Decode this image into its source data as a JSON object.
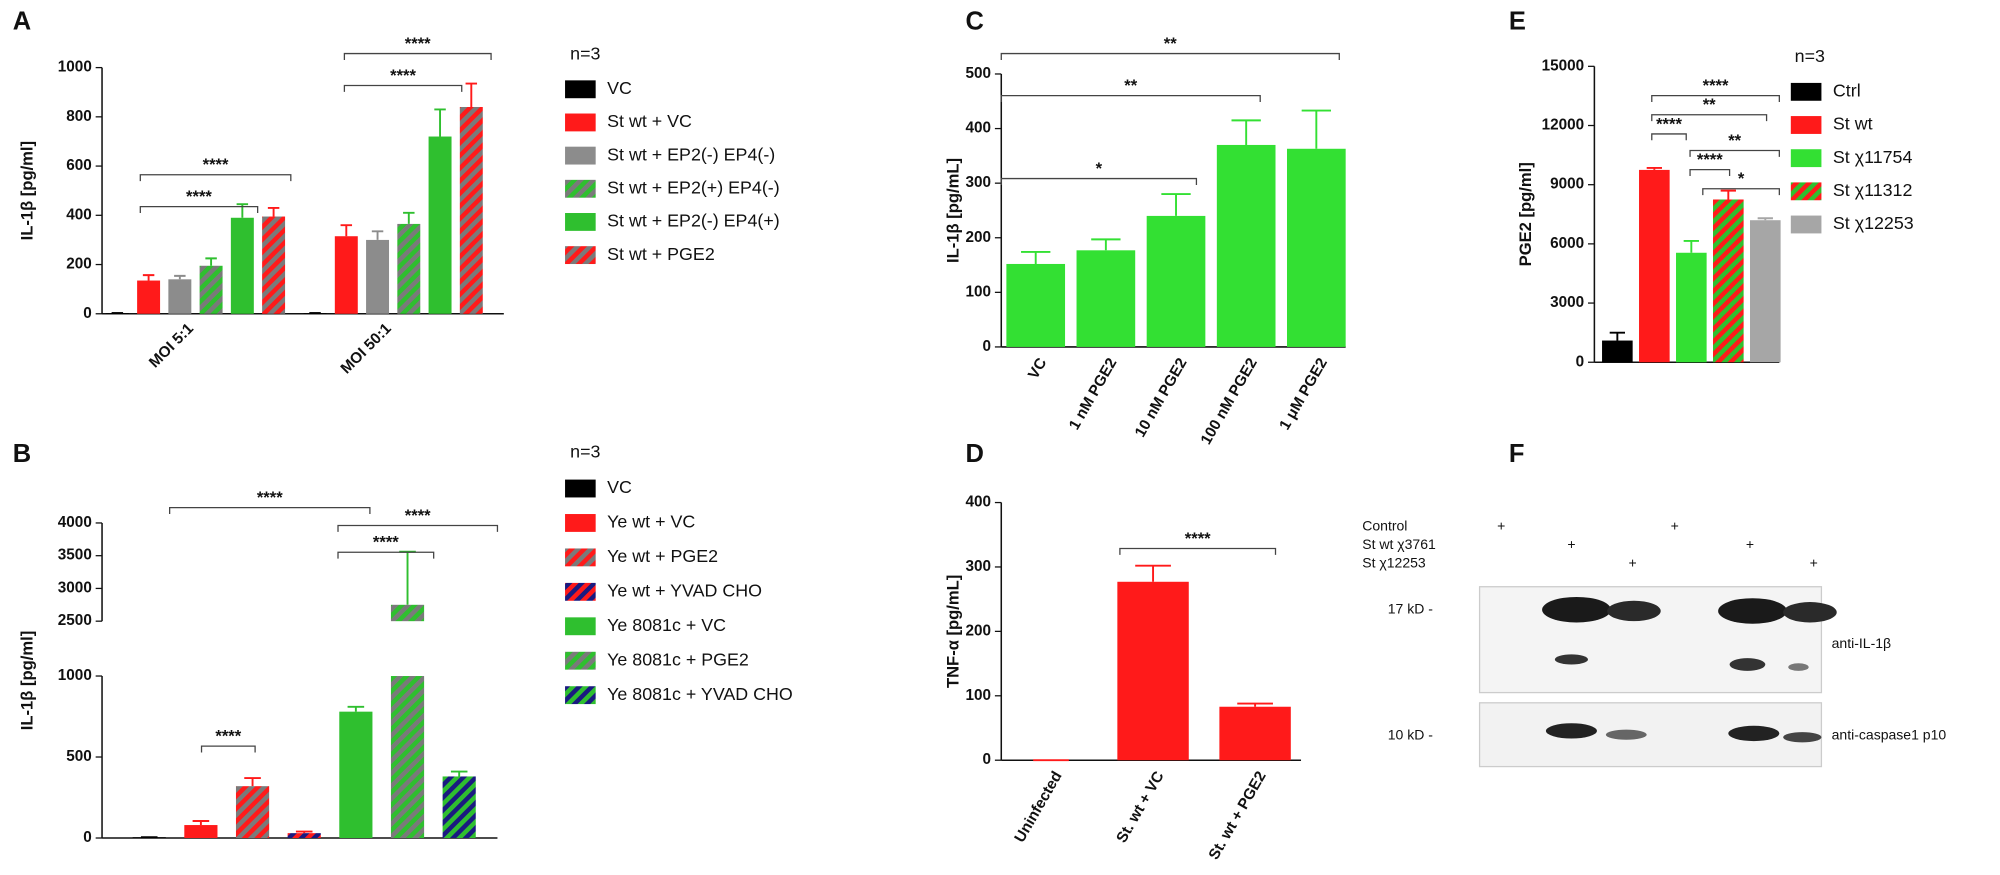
{
  "chart_data": [
    {
      "panel": "A",
      "type": "bar",
      "ylabel": "IL-1β [pg/ml]",
      "legend_title": "n=3",
      "categories": [
        "MOI 5:1",
        "MOI 50:1"
      ],
      "series": [
        {
          "name": "VC",
          "color": "#000000",
          "values": [
            3,
            3
          ],
          "errors": [
            0,
            0
          ]
        },
        {
          "name": "St wt + VC",
          "color": "#ff1a1a",
          "values": [
            135,
            315
          ],
          "errors": [
            22,
            45
          ]
        },
        {
          "name": "St wt + EP2(-) EP4(-)",
          "color": "#8c8c8c",
          "values": [
            140,
            300
          ],
          "errors": [
            14,
            35
          ]
        },
        {
          "name": "St wt + EP2(+) EP4(-)",
          "color": "#2fbf2f",
          "stripe_color": "#7a7a7a",
          "values": [
            195,
            365
          ],
          "errors": [
            30,
            45
          ]
        },
        {
          "name": "St wt + EP2(-) EP4(+)",
          "color": "#2fbf2f",
          "values": [
            390,
            720
          ],
          "errors": [
            55,
            110
          ]
        },
        {
          "name": "St wt + PGE2",
          "color": "#ff1a1a",
          "stripe_color": "#7a7a7a",
          "values": [
            395,
            840
          ],
          "errors": [
            35,
            95
          ]
        }
      ],
      "ylim": [
        0,
        1000
      ],
      "yticks": [
        0,
        200,
        400,
        600,
        800,
        1000
      ],
      "annotations": [
        "****",
        "****",
        "****",
        "****"
      ]
    },
    {
      "panel": "B",
      "type": "bar",
      "ylabel": "IL-1β [pg/ml]",
      "legend_title": "n=3",
      "series": [
        {
          "name": "VC",
          "color": "#000000",
          "values": [
            5
          ],
          "errors": [
            0
          ]
        },
        {
          "name": "Ye wt + VC",
          "color": "#ff1a1a",
          "values": [
            80
          ],
          "errors": [
            25
          ]
        },
        {
          "name": "Ye wt + PGE2",
          "color": "#ff1a1a",
          "stripe_color": "#7a7a7a",
          "values": [
            320
          ],
          "errors": [
            50
          ]
        },
        {
          "name": "Ye wt + YVAD CHO",
          "color": "#ff1a1a",
          "stripe_color": "#1a1a80",
          "values": [
            30
          ],
          "errors": [
            10
          ]
        },
        {
          "name": "Ye 8081c + VC",
          "color": "#2fbf2f",
          "values": [
            780
          ],
          "errors": [
            30
          ]
        },
        {
          "name": "Ye 8081c + PGE2",
          "color": "#2fbf2f",
          "stripe_color": "#7a7a7a",
          "values": [
            2750
          ],
          "errors": [
            810
          ]
        },
        {
          "name": "Ye 8081c + YVAD CHO",
          "color": "#2fbf2f",
          "stripe_color": "#1a1a80",
          "values": [
            380
          ],
          "errors": [
            30
          ]
        }
      ],
      "ylim": [
        0,
        4000
      ],
      "ybreak": [
        1000,
        2500
      ],
      "yticks": [
        0,
        500,
        1000,
        2500,
        3000,
        3500,
        4000
      ],
      "annotations": [
        "****",
        "****",
        "****",
        "****"
      ]
    },
    {
      "panel": "C",
      "type": "bar",
      "ylabel": "IL-1β [pg/mL]",
      "categories": [
        "VC",
        "1 nM PGE2",
        "10 nM PGE2",
        "100 nM PGE2",
        "1 μM PGE2"
      ],
      "color": "#33e033",
      "values": [
        152,
        177,
        240,
        370,
        363
      ],
      "errors": [
        22,
        20,
        40,
        45,
        70
      ],
      "ylim": [
        0,
        500
      ],
      "yticks": [
        0,
        100,
        200,
        300,
        400,
        500
      ],
      "annotations": [
        "*",
        "**",
        "**"
      ]
    },
    {
      "panel": "D",
      "type": "bar",
      "ylabel": "TNF-α [pg/mL]",
      "categories": [
        "Uninfected",
        "St. wt + VC",
        "St. wt + PGE2"
      ],
      "color": "#ff1a1a",
      "values": [
        0,
        277,
        83
      ],
      "errors": [
        0,
        25,
        5
      ],
      "ylim": [
        0,
        400
      ],
      "yticks": [
        0,
        100,
        200,
        300,
        400
      ],
      "annotations": [
        "****"
      ]
    },
    {
      "panel": "E",
      "type": "bar",
      "ylabel": "PGE2 [pg/ml]",
      "legend_title": "n=3",
      "series": [
        {
          "name": "Ctrl",
          "color": "#000000",
          "values": [
            1100
          ],
          "errors": [
            400
          ]
        },
        {
          "name": "St wt",
          "color": "#ff1a1a",
          "values": [
            9750
          ],
          "errors": [
            100
          ]
        },
        {
          "name": "St χ11754",
          "color": "#33e033",
          "values": [
            5550
          ],
          "errors": [
            600
          ]
        },
        {
          "name": "St χ11312",
          "color": "#ff1a1a",
          "stripe_color": "#2fbf2f",
          "values": [
            8250
          ],
          "errors": [
            450
          ]
        },
        {
          "name": "St χ12253",
          "color": "#a6a6a6",
          "values": [
            7200
          ],
          "errors": [
            100
          ]
        }
      ],
      "ylim": [
        0,
        15000
      ],
      "yticks": [
        0,
        3000,
        6000,
        9000,
        12000,
        15000
      ],
      "annotations": [
        "****",
        "**",
        "****",
        "**",
        "****",
        "*"
      ]
    }
  ],
  "blot": {
    "panel": "F",
    "conditions": [
      {
        "label": "Control",
        "lanes": [
          "+",
          null,
          null,
          "+",
          null,
          null
        ]
      },
      {
        "label": "St wt χ3761",
        "lanes": [
          null,
          "+",
          null,
          null,
          "+",
          null
        ]
      },
      {
        "label": "St χ12253",
        "lanes": [
          null,
          null,
          "+",
          null,
          null,
          "+"
        ]
      }
    ],
    "markers": [
      "17 kD -",
      "10 kD -"
    ],
    "antibodies": [
      "anti-IL-1β",
      "anti-caspase1 p10"
    ]
  }
}
